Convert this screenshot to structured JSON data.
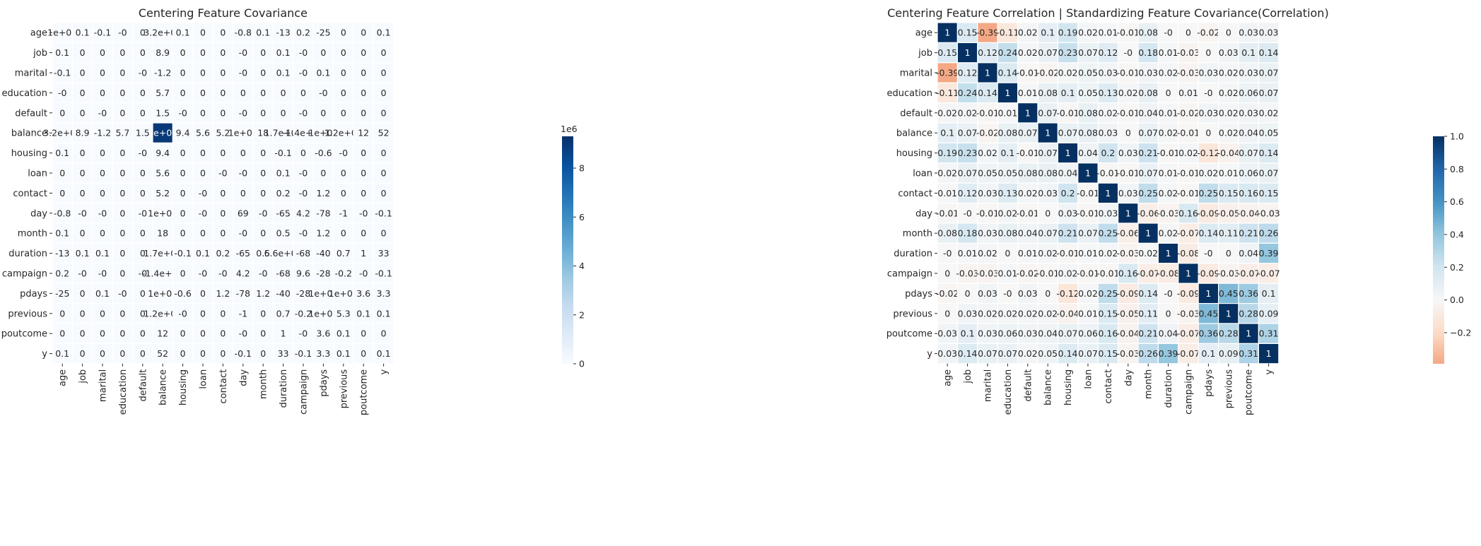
{
  "chart_data": [
    {
      "type": "heatmap",
      "title": "Centering Feature Covariance",
      "labels": [
        "age",
        "job",
        "marital",
        "education",
        "default",
        "balance",
        "housing",
        "loan",
        "contact",
        "day",
        "month",
        "duration",
        "campaign",
        "pdays",
        "previous",
        "poutcome",
        "y"
      ],
      "annot": [
        [
          "1e+02",
          "0.1",
          "-0.1",
          "-0",
          "0",
          "3.2e+03",
          "0.1",
          "0",
          "0",
          "-0.8",
          "0.1",
          "-13",
          "0.2",
          "-25",
          "0",
          "0",
          "0.1"
        ],
        [
          "0.1",
          "0",
          "0",
          "0",
          "0",
          "8.9",
          "0",
          "0",
          "0",
          "-0",
          "0",
          "0.1",
          "-0",
          "0",
          "0",
          "0",
          "0"
        ],
        [
          "-0.1",
          "0",
          "0",
          "0",
          "-0",
          "-1.2",
          "0",
          "0",
          "0",
          "-0",
          "0",
          "0.1",
          "-0",
          "0.1",
          "0",
          "0",
          "0"
        ],
        [
          "-0",
          "0",
          "0",
          "0",
          "0",
          "5.7",
          "0",
          "0",
          "0",
          "0",
          "0",
          "0",
          "0",
          "-0",
          "0",
          "0",
          "0"
        ],
        [
          "0",
          "0",
          "-0",
          "0",
          "0",
          "1.5",
          "-0",
          "0",
          "0",
          "-0",
          "0",
          "0",
          "-0",
          "0",
          "0",
          "0",
          "0"
        ],
        [
          "3.2e+03",
          "8.9",
          "-1.2",
          "5.7",
          "1.5",
          "9e+06",
          "9.4",
          "5.6",
          "5.2",
          "1e+02",
          "18",
          "1.7e+04",
          "-1.4e+02",
          "1e+03",
          "1.2e+02",
          "12",
          "52"
        ],
        [
          "0.1",
          "0",
          "0",
          "0",
          "-0",
          "9.4",
          "0",
          "0",
          "0",
          "0",
          "0",
          "-0.1",
          "0",
          "-0.6",
          "-0",
          "0",
          "0"
        ],
        [
          "0",
          "0",
          "0",
          "0",
          "0",
          "5.6",
          "0",
          "0",
          "-0",
          "-0",
          "0",
          "0.1",
          "-0",
          "0",
          "0",
          "0",
          "0"
        ],
        [
          "0",
          "0",
          "0",
          "0",
          "0",
          "5.2",
          "0",
          "-0",
          "0",
          "0",
          "0",
          "0.2",
          "-0",
          "1.2",
          "0",
          "0",
          "0"
        ],
        [
          "-0.8",
          "-0",
          "-0",
          "0",
          "-0",
          "1e+02",
          "0",
          "-0",
          "0",
          "69",
          "-0",
          "-65",
          "4.2",
          "-78",
          "-1",
          "-0",
          "-0.1"
        ],
        [
          "0.1",
          "0",
          "0",
          "0",
          "0",
          "18",
          "0",
          "0",
          "0",
          "-0",
          "0",
          "0.5",
          "-0",
          "1.2",
          "0",
          "0",
          "0"
        ],
        [
          "-13",
          "0.1",
          "0.1",
          "0",
          "0",
          "1.7e+04",
          "-0.1",
          "0.1",
          "0.2",
          "-65",
          "0.5",
          "6.6e+04",
          "-68",
          "-40",
          "0.7",
          "1",
          "33"
        ],
        [
          "0.2",
          "-0",
          "-0",
          "0",
          "-0",
          "-1.4e+02",
          "0",
          "-0",
          "-0",
          "4.2",
          "-0",
          "-68",
          "9.6",
          "-28",
          "-0.2",
          "-0",
          "-0.1"
        ],
        [
          "-25",
          "0",
          "0.1",
          "-0",
          "0",
          "1e+03",
          "-0.6",
          "0",
          "1.2",
          "-78",
          "1.2",
          "-40",
          "-28",
          "1e+04",
          "1e+02",
          "3.6",
          "3.3"
        ],
        [
          "0",
          "0",
          "0",
          "0",
          "0",
          "1.2e+02",
          "-0",
          "0",
          "0",
          "-1",
          "0",
          "0.7",
          "-0.2",
          "1e+02",
          "5.3",
          "0.1",
          "0.1"
        ],
        [
          "0",
          "0",
          "0",
          "0",
          "0",
          "12",
          "0",
          "0",
          "0",
          "-0",
          "0",
          "1",
          "-0",
          "3.6",
          "0.1",
          "0",
          "0"
        ],
        [
          "0.1",
          "0",
          "0",
          "0",
          "0",
          "52",
          "0",
          "0",
          "0",
          "-0.1",
          "0",
          "33",
          "-0.1",
          "3.3",
          "0.1",
          "0",
          "0.1"
        ]
      ],
      "colorbar": {
        "label": "1e6",
        "min": 0,
        "max": 9.3,
        "ticks": [
          "0",
          "2",
          "4",
          "6",
          "8"
        ],
        "tick_values": [
          0,
          2,
          4,
          6,
          8
        ]
      },
      "colormap": "Blues"
    },
    {
      "type": "heatmap",
      "title": "Centering Feature Correlation | Standardizing Feature Covariance(Correlation)",
      "labels": [
        "age",
        "job",
        "marital",
        "education",
        "default",
        "balance",
        "housing",
        "loan",
        "contact",
        "day",
        "month",
        "duration",
        "campaign",
        "pdays",
        "previous",
        "poutcome",
        "y"
      ],
      "values": [
        [
          1,
          0.15,
          -0.39,
          -0.11,
          0.02,
          0.1,
          0.19,
          0.02,
          0.01,
          -0.01,
          0.08,
          0,
          0,
          -0.02,
          0,
          0.03,
          0.03
        ],
        [
          0.15,
          1,
          0.12,
          0.24,
          0.02,
          0.07,
          0.23,
          0.07,
          0.12,
          0,
          0.18,
          0.01,
          -0.03,
          0,
          0.03,
          0.1,
          0.14
        ],
        [
          -0.39,
          0.12,
          1,
          0.14,
          -0.01,
          -0.02,
          0.02,
          0.05,
          0.03,
          -0.01,
          0.03,
          0.02,
          -0.03,
          0.03,
          0.02,
          0.03,
          0.07
        ],
        [
          -0.11,
          0.24,
          0.14,
          1,
          0.01,
          0.08,
          0.1,
          0.05,
          0.13,
          0.02,
          0.08,
          0,
          0.01,
          0,
          0.02,
          0.06,
          0.07
        ],
        [
          0.02,
          0.02,
          -0.01,
          0.01,
          1,
          0.07,
          -0.01,
          0.08,
          0.02,
          -0.01,
          0.04,
          0.01,
          -0.02,
          0.03,
          0.02,
          0.03,
          0.02
        ],
        [
          0.1,
          0.07,
          -0.02,
          0.08,
          0.07,
          1,
          0.07,
          0.08,
          0.03,
          0,
          0.07,
          0.02,
          -0.01,
          0,
          0.02,
          0.04,
          0.05
        ],
        [
          0.19,
          0.23,
          0.02,
          0.1,
          -0.01,
          0.07,
          1,
          0.04,
          0.2,
          0.03,
          0.21,
          -0.01,
          0.02,
          -0.12,
          -0.04,
          0.07,
          0.14
        ],
        [
          0.02,
          0.07,
          0.05,
          0.05,
          0.08,
          0.08,
          0.04,
          1,
          -0.01,
          -0.01,
          0.07,
          0.01,
          -0.01,
          0.02,
          0.01,
          0.06,
          0.07
        ],
        [
          0.01,
          0.12,
          0.03,
          0.13,
          0.02,
          0.03,
          0.2,
          -0.01,
          1,
          0.03,
          0.25,
          0.02,
          -0.01,
          0.25,
          0.15,
          0.16,
          0.15
        ],
        [
          -0.01,
          0,
          -0.01,
          0.02,
          -0.01,
          0,
          0.03,
          -0.01,
          0.03,
          1,
          -0.06,
          -0.03,
          0.16,
          -0.09,
          -0.05,
          -0.04,
          -0.03
        ],
        [
          0.08,
          0.18,
          0.03,
          0.08,
          0.04,
          0.07,
          0.21,
          0.07,
          0.25,
          -0.06,
          1,
          0.02,
          -0.07,
          0.14,
          0.11,
          0.21,
          0.26
        ],
        [
          0,
          0.01,
          0.02,
          0,
          0.01,
          0.02,
          -0.01,
          0.01,
          0.02,
          -0.03,
          0.02,
          1,
          -0.08,
          0,
          0,
          0.04,
          0.39
        ],
        [
          0,
          -0.03,
          -0.03,
          0.01,
          -0.02,
          -0.01,
          0.02,
          -0.01,
          -0.01,
          0.16,
          -0.07,
          -0.08,
          1,
          -0.09,
          -0.03,
          -0.07,
          -0.07
        ],
        [
          -0.02,
          0,
          0.03,
          0,
          0.03,
          0,
          -0.12,
          0.02,
          0.25,
          -0.09,
          0.14,
          0,
          -0.09,
          1,
          0.45,
          0.36,
          0.1
        ],
        [
          0,
          0.03,
          0.02,
          0.02,
          0.02,
          0.02,
          -0.04,
          0.01,
          0.15,
          -0.05,
          0.11,
          0,
          -0.03,
          0.45,
          1,
          0.28,
          0.09
        ],
        [
          0.03,
          0.1,
          0.03,
          0.06,
          0.03,
          0.04,
          0.07,
          0.06,
          0.16,
          -0.04,
          0.21,
          0.04,
          -0.07,
          0.36,
          0.28,
          1,
          0.31
        ],
        [
          0.03,
          0.14,
          0.07,
          0.07,
          0.02,
          0.05,
          0.14,
          0.07,
          0.15,
          -0.03,
          0.26,
          0.39,
          -0.07,
          0.1,
          0.09,
          0.31,
          1
        ]
      ],
      "colorbar": {
        "min": -0.39,
        "max": 1.0,
        "ticks": [
          "−0.2",
          "0.0",
          "0.2",
          "0.4",
          "0.6",
          "0.8",
          "1.0"
        ],
        "tick_values": [
          -0.2,
          0,
          0.2,
          0.4,
          0.6,
          0.8,
          1.0
        ]
      },
      "colormap": "RdBu (centered at 0)"
    }
  ]
}
